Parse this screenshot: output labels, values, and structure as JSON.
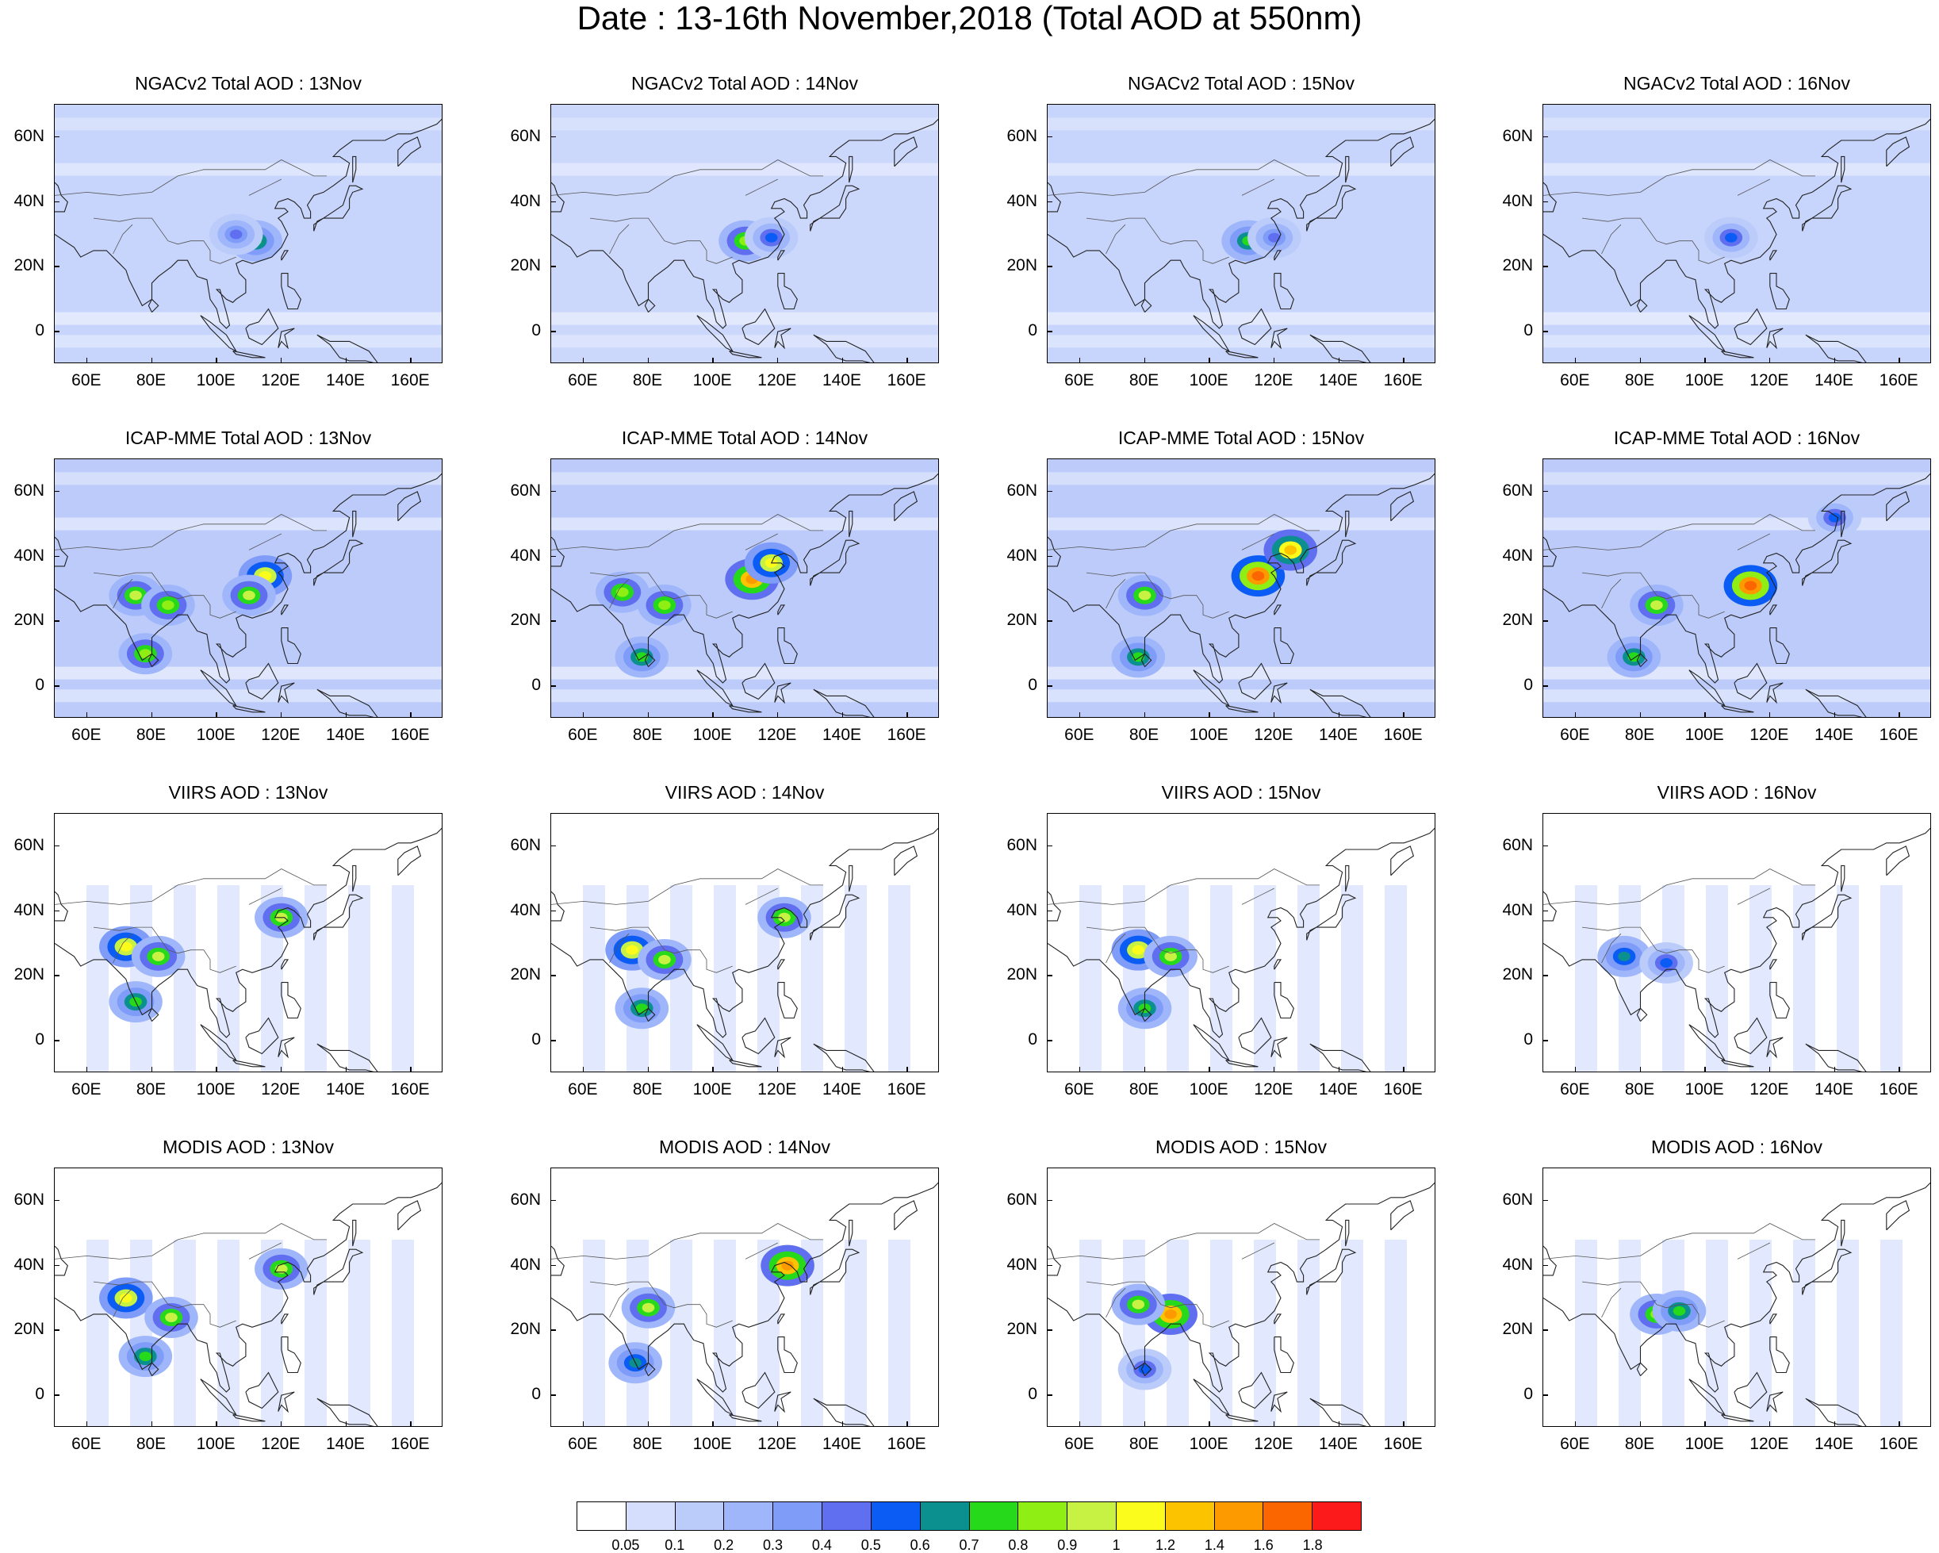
{
  "title": "Date : 13-16th November,2018 (Total AOD at 550nm)",
  "rows": [
    {
      "product": "NGACv2 Total AOD",
      "panels": [
        {
          "title": "NGACv2 Total AOD : 13Nov",
          "base": "#c7d4fb",
          "hotspots": [
            {
              "lon": 112,
              "lat": 28,
              "v": 0.8
            },
            {
              "lon": 106,
              "lat": 30,
              "v": 0.5
            }
          ]
        },
        {
          "title": "NGACv2 Total AOD : 14Nov",
          "base": "#cbd7fb",
          "hotspots": [
            {
              "lon": 110,
              "lat": 28,
              "v": 0.9
            },
            {
              "lon": 118,
              "lat": 29,
              "v": 0.6
            }
          ]
        },
        {
          "title": "NGACv2 Total AOD : 15Nov",
          "base": "#c7d4fb",
          "hotspots": [
            {
              "lon": 112,
              "lat": 28,
              "v": 0.8
            },
            {
              "lon": 120,
              "lat": 29,
              "v": 0.5
            }
          ]
        },
        {
          "title": "NGACv2 Total AOD : 16Nov",
          "base": "#c7d4fb",
          "hotspots": [
            {
              "lon": 108,
              "lat": 29,
              "v": 0.6
            }
          ]
        }
      ]
    },
    {
      "product": "ICAP-MME Total AOD",
      "panels": [
        {
          "title": "ICAP-MME Total AOD : 13Nov",
          "base": "#bccbfa",
          "hotspots": [
            {
              "lon": 75,
              "lat": 28,
              "v": 1.0
            },
            {
              "lon": 85,
              "lat": 25,
              "v": 0.9
            },
            {
              "lon": 115,
              "lat": 34,
              "v": 1.2
            },
            {
              "lon": 110,
              "lat": 28,
              "v": 1.0
            },
            {
              "lon": 78,
              "lat": 10,
              "v": 0.9
            }
          ]
        },
        {
          "title": "ICAP-MME Total AOD : 14Nov",
          "base": "#bccbfa",
          "hotspots": [
            {
              "lon": 72,
              "lat": 29,
              "v": 0.9
            },
            {
              "lon": 85,
              "lat": 25,
              "v": 0.9
            },
            {
              "lon": 112,
              "lat": 33,
              "v": 1.5
            },
            {
              "lon": 118,
              "lat": 38,
              "v": 1.2
            },
            {
              "lon": 78,
              "lat": 9,
              "v": 0.8
            }
          ]
        },
        {
          "title": "ICAP-MME Total AOD : 15Nov",
          "base": "#bccbfa",
          "hotspots": [
            {
              "lon": 115,
              "lat": 34,
              "v": 1.8
            },
            {
              "lon": 125,
              "lat": 42,
              "v": 1.4
            },
            {
              "lon": 80,
              "lat": 28,
              "v": 1.0
            },
            {
              "lon": 78,
              "lat": 9,
              "v": 0.8
            }
          ]
        },
        {
          "title": "ICAP-MME Total AOD : 16Nov",
          "base": "#bccbfa",
          "hotspots": [
            {
              "lon": 114,
              "lat": 31,
              "v": 1.8
            },
            {
              "lon": 85,
              "lat": 25,
              "v": 1.0
            },
            {
              "lon": 140,
              "lat": 52,
              "v": 0.6
            },
            {
              "lon": 78,
              "lat": 9,
              "v": 0.8
            }
          ]
        }
      ]
    },
    {
      "product": "VIIRS AOD",
      "panels": [
        {
          "title": "VIIRS AOD : 13Nov",
          "base": "#ffffff",
          "hotspots": [
            {
              "lon": 72,
              "lat": 29,
              "v": 1.2
            },
            {
              "lon": 82,
              "lat": 26,
              "v": 1.0
            },
            {
              "lon": 120,
              "lat": 38,
              "v": 1.0
            },
            {
              "lon": 75,
              "lat": 12,
              "v": 0.8
            }
          ]
        },
        {
          "title": "VIIRS AOD : 14Nov",
          "base": "#ffffff",
          "hotspots": [
            {
              "lon": 75,
              "lat": 28,
              "v": 1.2
            },
            {
              "lon": 85,
              "lat": 25,
              "v": 1.0
            },
            {
              "lon": 122,
              "lat": 38,
              "v": 1.0
            },
            {
              "lon": 78,
              "lat": 10,
              "v": 0.8
            }
          ]
        },
        {
          "title": "VIIRS AOD : 15Nov",
          "base": "#ffffff",
          "hotspots": [
            {
              "lon": 78,
              "lat": 28,
              "v": 1.2
            },
            {
              "lon": 88,
              "lat": 26,
              "v": 1.0
            },
            {
              "lon": 80,
              "lat": 10,
              "v": 0.8
            }
          ]
        },
        {
          "title": "VIIRS AOD : 16Nov",
          "base": "#ffffff",
          "hotspots": [
            {
              "lon": 75,
              "lat": 26,
              "v": 0.7
            },
            {
              "lon": 88,
              "lat": 24,
              "v": 0.6
            }
          ]
        }
      ]
    },
    {
      "product": "MODIS AOD",
      "panels": [
        {
          "title": "MODIS AOD : 13Nov",
          "base": "#ffffff",
          "hotspots": [
            {
              "lon": 72,
              "lat": 30,
              "v": 1.2
            },
            {
              "lon": 86,
              "lat": 24,
              "v": 1.0
            },
            {
              "lon": 120,
              "lat": 39,
              "v": 1.0
            },
            {
              "lon": 78,
              "lat": 12,
              "v": 0.8
            }
          ]
        },
        {
          "title": "MODIS AOD : 14Nov",
          "base": "#ffffff",
          "hotspots": [
            {
              "lon": 80,
              "lat": 27,
              "v": 1.0
            },
            {
              "lon": 123,
              "lat": 40,
              "v": 1.6
            },
            {
              "lon": 76,
              "lat": 10,
              "v": 0.7
            }
          ]
        },
        {
          "title": "MODIS AOD : 15Nov",
          "base": "#ffffff",
          "hotspots": [
            {
              "lon": 88,
              "lat": 25,
              "v": 1.6
            },
            {
              "lon": 78,
              "lat": 28,
              "v": 1.0
            },
            {
              "lon": 80,
              "lat": 8,
              "v": 0.6
            }
          ]
        },
        {
          "title": "MODIS AOD : 16Nov",
          "base": "#ffffff",
          "hotspots": [
            {
              "lon": 85,
              "lat": 25,
              "v": 0.9
            },
            {
              "lon": 92,
              "lat": 26,
              "v": 0.8
            }
          ]
        }
      ]
    }
  ],
  "axes": {
    "lat_ticks": [
      "60N",
      "40N",
      "20N",
      "0"
    ],
    "lon_ticks": [
      "60E",
      "80E",
      "100E",
      "120E",
      "140E",
      "160E"
    ],
    "lon_range": [
      50,
      170
    ],
    "lat_range": [
      -10,
      70
    ]
  },
  "colorbar": {
    "colors": [
      "#ffffff",
      "#d5dffd",
      "#bcccfa",
      "#9fb6fb",
      "#7f9cf9",
      "#5f6ff0",
      "#0a5cf5",
      "#0b8f8f",
      "#26d91a",
      "#8fee14",
      "#c7f244",
      "#fbfc1b",
      "#fcc300",
      "#fc9a00",
      "#fc6600",
      "#fc1a1a"
    ],
    "labels": [
      "0.05",
      "0.1",
      "0.2",
      "0.3",
      "0.4",
      "0.5",
      "0.6",
      "0.7",
      "0.8",
      "0.9",
      "1",
      "1.2",
      "1.4",
      "1.6",
      "1.8"
    ]
  }
}
